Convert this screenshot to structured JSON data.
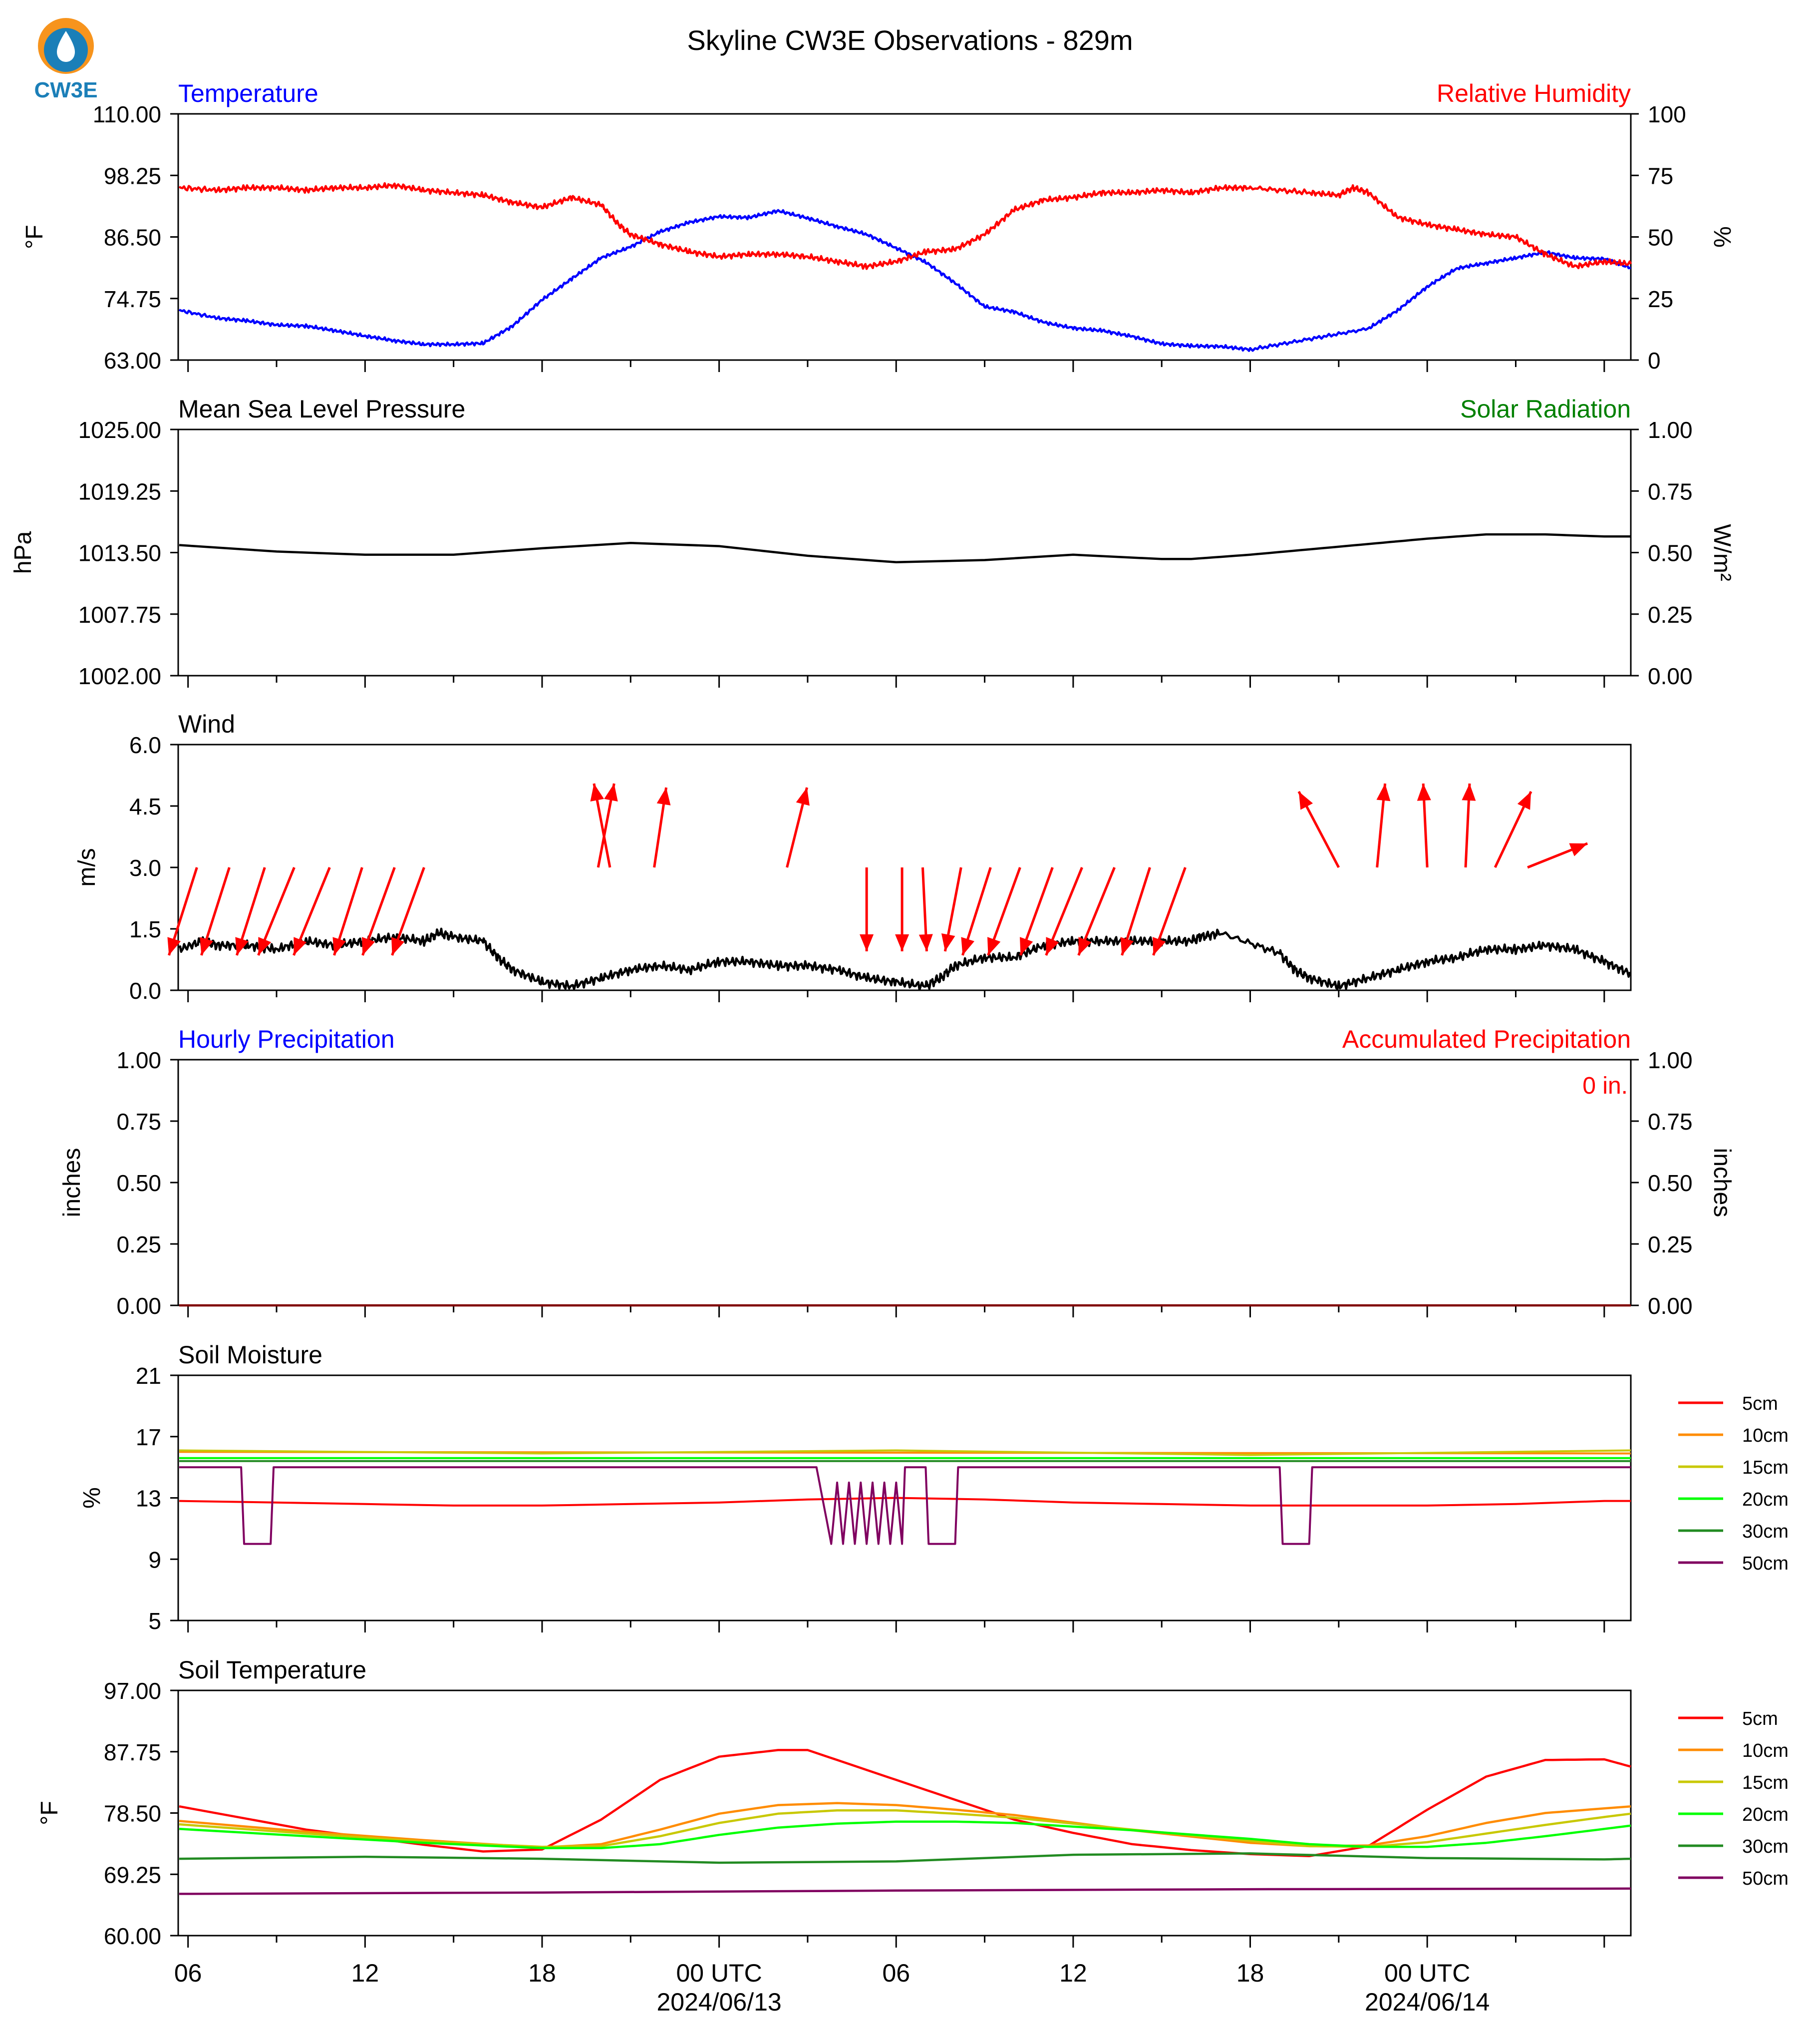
{
  "page": {
    "title": "Skyline CW3E Observations - 829m",
    "logo_text": "CW3E"
  },
  "colors": {
    "temperature": "#0000ff",
    "humidity": "#ff0000",
    "pressure": "#000000",
    "solar": "#008000",
    "wind": "#000000",
    "wind_arrow": "#ff0000",
    "hourly_precip": "#0000ff",
    "accum_precip": "#ff0000",
    "depths": {
      "5cm": "#ff0000",
      "10cm": "#ff8c00",
      "15cm": "#c8c800",
      "20cm": "#00ff00",
      "30cm": "#228b22",
      "50cm": "#800060"
    }
  },
  "time_axis": {
    "start": "2024-06-12T05:40Z",
    "end": "2024-06-14T02:40Z",
    "tick_labels": [
      "06",
      "12",
      "18",
      "00 UTC",
      "06",
      "12",
      "18",
      "00 UTC"
    ],
    "date_labels": [
      "2024/06/13",
      "2024/06/14"
    ]
  },
  "chart_data": [
    {
      "id": "temp_rh",
      "type": "line",
      "title_left": "Temperature",
      "title_right": "Relative Humidity",
      "ylabel_left": "°F",
      "ylabel_right": "%",
      "ylim_left": [
        63.0,
        110.0
      ],
      "ylim_right": [
        0,
        100
      ],
      "yticks_left": [
        "63.00",
        "74.75",
        "86.50",
        "98.25",
        "110.00"
      ],
      "yticks_right": [
        "0",
        "25",
        "50",
        "75",
        "100"
      ],
      "series": [
        {
          "name": "Temperature",
          "axis": "left",
          "x": [
            -0.3,
            1,
            2,
            3,
            4,
            5,
            6,
            7,
            8,
            9,
            10,
            11,
            12,
            13,
            14,
            15,
            16,
            17,
            18,
            19,
            20,
            21,
            22,
            23,
            24,
            25,
            26,
            27,
            28,
            29,
            30,
            31,
            32,
            33,
            34,
            35,
            36,
            38,
            40,
            41,
            42,
            43,
            44,
            45,
            46,
            47,
            48,
            48.9
          ],
          "y": [
            72.5,
            71.0,
            70.5,
            69.7,
            69.5,
            68.6,
            67.6,
            66.7,
            66.0,
            66.0,
            66.2,
            69.5,
            74.5,
            78.5,
            82.5,
            84.6,
            87.5,
            89.3,
            90.4,
            90.2,
            91.5,
            90.1,
            88.5,
            87.0,
            84.4,
            81.7,
            77.7,
            73.2,
            72.2,
            70.2,
            69.1,
            68.6,
            67.5,
            66.1,
            65.7,
            65.6,
            65.0,
            67.0,
            69.0,
            72.5,
            77.0,
            80.5,
            81.5,
            82.5,
            83.6,
            82.5,
            82.3,
            80.6
          ]
        },
        {
          "name": "Relative Humidity",
          "axis": "right",
          "x": [
            -0.3,
            1,
            2,
            3,
            4,
            5,
            6,
            7,
            8,
            9,
            10,
            11,
            12,
            13,
            14,
            14.6,
            15,
            16,
            17,
            18,
            19,
            20,
            21,
            22,
            23,
            24,
            25,
            26,
            27,
            28,
            29,
            30,
            31,
            32,
            33,
            34,
            35,
            36,
            38,
            39,
            39.5,
            40,
            41,
            42,
            43,
            44,
            45,
            46,
            47,
            48,
            48.9
          ],
          "y": [
            70,
            69,
            70,
            70,
            69,
            70,
            70,
            71,
            69,
            68,
            67,
            64,
            62,
            66,
            63,
            55,
            51,
            47,
            44,
            42,
            43,
            43,
            42,
            40,
            38,
            40,
            44,
            45,
            51,
            61,
            65,
            66,
            68,
            68,
            69,
            68,
            70,
            70,
            68,
            67,
            70,
            68,
            58,
            55,
            53,
            51,
            50,
            43,
            38,
            40,
            39
          ]
        }
      ]
    },
    {
      "id": "pressure_solar",
      "type": "line",
      "title_left": "Mean Sea Level Pressure",
      "title_right": "Solar Radiation",
      "ylabel_left": "hPa",
      "ylabel_right": "W/m²",
      "ylim_left": [
        1002.0,
        1025.0
      ],
      "ylim_right": [
        0.0,
        1.0
      ],
      "yticks_left": [
        "1002.00",
        "1007.75",
        "1013.50",
        "1019.25",
        "1025.00"
      ],
      "yticks_right": [
        "0.00",
        "0.25",
        "0.50",
        "0.75",
        "1.00"
      ],
      "series": [
        {
          "name": "Mean Sea Level Pressure",
          "axis": "left",
          "x": [
            -0.3,
            3,
            6,
            9,
            12,
            15,
            18,
            21,
            24,
            27,
            30,
            33,
            34,
            36,
            38,
            40,
            42,
            44,
            46,
            48,
            48.9
          ],
          "y": [
            1014.2,
            1013.6,
            1013.3,
            1013.3,
            1013.9,
            1014.4,
            1014.1,
            1013.2,
            1012.6,
            1012.8,
            1013.3,
            1012.9,
            1012.9,
            1013.3,
            1013.8,
            1014.3,
            1014.8,
            1015.2,
            1015.2,
            1015.0,
            1015.0
          ]
        }
      ]
    },
    {
      "id": "wind",
      "type": "line",
      "title_left": "Wind",
      "ylabel_left": "m/s",
      "ylim_left": [
        0.0,
        6.0
      ],
      "yticks_left": [
        "0.0",
        "1.5",
        "3.0",
        "4.5",
        "6.0"
      ],
      "series": [
        {
          "name": "Wind speed",
          "x": [
            -0.3,
            0.5,
            1,
            2,
            3,
            4,
            5,
            6,
            7,
            8,
            8.5,
            9,
            10,
            10.5,
            11,
            12,
            13,
            14,
            15,
            16,
            17,
            18,
            19,
            20,
            21,
            22,
            23,
            24,
            25,
            25.5,
            26,
            27,
            28,
            29,
            30,
            31,
            32,
            33,
            34,
            34.3,
            35,
            37,
            37.5,
            38,
            39,
            40,
            41,
            42,
            43,
            44,
            45,
            46,
            47,
            48,
            48.9
          ],
          "y": [
            1.0,
            1.2,
            1.1,
            1.1,
            1.0,
            1.2,
            1.1,
            1.2,
            1.3,
            1.2,
            1.4,
            1.3,
            1.2,
            0.8,
            0.5,
            0.2,
            0.1,
            0.3,
            0.5,
            0.6,
            0.5,
            0.7,
            0.7,
            0.6,
            0.6,
            0.5,
            0.3,
            0.2,
            0.1,
            0.3,
            0.6,
            0.8,
            0.8,
            1.1,
            1.2,
            1.2,
            1.2,
            1.2,
            1.2,
            1.3,
            1.4,
            0.9,
            0.5,
            0.3,
            0.1,
            0.3,
            0.5,
            0.7,
            0.8,
            1.0,
            1.0,
            1.1,
            1.0,
            0.7,
            0.4
          ]
        }
      ],
      "barbs_note": "wind direction arrows",
      "arrows": [
        {
          "t": 0.3,
          "u": -0.7,
          "v": -2.2
        },
        {
          "t": 1.4,
          "u": -0.7,
          "v": -2.2
        },
        {
          "t": 2.6,
          "u": -0.7,
          "v": -2.2
        },
        {
          "t": 3.6,
          "u": -0.9,
          "v": -2.2
        },
        {
          "t": 4.8,
          "u": -0.9,
          "v": -2.2
        },
        {
          "t": 5.9,
          "u": -0.7,
          "v": -2.2
        },
        {
          "t": 7.0,
          "u": -0.8,
          "v": -2.2
        },
        {
          "t": 8.0,
          "u": -0.8,
          "v": -2.2
        },
        {
          "t": 13.9,
          "u": 0.4,
          "v": 2.1
        },
        {
          "t": 14.3,
          "u": -0.4,
          "v": 2.1
        },
        {
          "t": 15.8,
          "u": 0.3,
          "v": 2.0
        },
        {
          "t": 20.3,
          "u": 0.5,
          "v": 2.0
        },
        {
          "t": 23.0,
          "u": 0.0,
          "v": -2.1
        },
        {
          "t": 24.2,
          "u": 0.0,
          "v": -2.1
        },
        {
          "t": 24.9,
          "u": 0.1,
          "v": -2.1
        },
        {
          "t": 26.2,
          "u": -0.4,
          "v": -2.1
        },
        {
          "t": 27.2,
          "u": -0.7,
          "v": -2.2
        },
        {
          "t": 28.2,
          "u": -0.8,
          "v": -2.2
        },
        {
          "t": 29.3,
          "u": -0.8,
          "v": -2.2
        },
        {
          "t": 30.3,
          "u": -0.9,
          "v": -2.2
        },
        {
          "t": 31.4,
          "u": -0.9,
          "v": -2.2
        },
        {
          "t": 32.6,
          "u": -0.7,
          "v": -2.2
        },
        {
          "t": 33.8,
          "u": -0.8,
          "v": -2.2
        },
        {
          "t": 39.0,
          "u": -1.0,
          "v": 1.9
        },
        {
          "t": 40.3,
          "u": 0.2,
          "v": 2.1
        },
        {
          "t": 42.0,
          "u": -0.1,
          "v": 2.1
        },
        {
          "t": 43.3,
          "u": 0.1,
          "v": 2.1
        },
        {
          "t": 44.3,
          "u": 0.9,
          "v": 1.9
        },
        {
          "t": 45.4,
          "u": 1.5,
          "v": 0.6
        }
      ]
    },
    {
      "id": "precip",
      "type": "line",
      "title_left": "Hourly Precipitation",
      "title_right": "Accumulated Precipitation",
      "ylabel_left": "inches",
      "ylabel_right": "inches",
      "ylim_left": [
        0.0,
        1.0
      ],
      "ylim_right": [
        0.0,
        1.0
      ],
      "yticks_left": [
        "0.00",
        "0.25",
        "0.50",
        "0.75",
        "1.00"
      ],
      "yticks_right": [
        "0.00",
        "0.25",
        "0.50",
        "0.75",
        "1.00"
      ],
      "annotation": "0 in.",
      "series": [
        {
          "name": "Hourly Precipitation",
          "x": [
            -0.3,
            48.9
          ],
          "y": [
            0,
            0
          ]
        }
      ]
    },
    {
      "id": "soil_moisture",
      "type": "line",
      "title_left": "Soil Moisture",
      "ylabel_left": "%",
      "ylim_left": [
        5,
        21
      ],
      "yticks_left": [
        "5",
        "9",
        "13",
        "17",
        "21"
      ],
      "legend": [
        "5cm",
        "10cm",
        "15cm",
        "20cm",
        "30cm",
        "50cm"
      ],
      "series": [
        {
          "name": "5cm",
          "x": [
            -0.3,
            3,
            6,
            9,
            12,
            15,
            18,
            21,
            24,
            27,
            30,
            33,
            36,
            39,
            42,
            45,
            48,
            48.9
          ],
          "y": [
            12.8,
            12.7,
            12.6,
            12.5,
            12.5,
            12.6,
            12.7,
            12.9,
            13.0,
            12.9,
            12.7,
            12.6,
            12.5,
            12.5,
            12.5,
            12.6,
            12.8,
            12.8
          ]
        },
        {
          "name": "10cm",
          "x": [
            -0.3,
            48.9
          ],
          "y": [
            16.0,
            15.9
          ]
        },
        {
          "name": "15cm",
          "x": [
            -0.3,
            12,
            24,
            36,
            48.9
          ],
          "y": [
            16.1,
            15.9,
            16.1,
            15.8,
            16.1
          ]
        },
        {
          "name": "20cm",
          "x": [
            -0.3,
            48.9
          ],
          "y": [
            15.6,
            15.6
          ]
        },
        {
          "name": "30cm",
          "x": [
            -0.3,
            48.9
          ],
          "y": [
            15.4,
            15.4
          ]
        },
        {
          "name": "50cm",
          "x": [
            -0.3,
            1.8,
            1.9,
            2.8,
            2.9,
            8,
            20,
            21.3,
            21.4,
            21.8,
            22,
            22.2,
            22.4,
            22.6,
            22.8,
            23,
            23.2,
            23.4,
            23.6,
            23.8,
            24,
            24.2,
            24.3,
            24.4,
            25,
            25.1,
            26,
            26.1,
            37,
            37.1,
            38,
            38.1,
            48.9
          ],
          "y": [
            15.0,
            15.0,
            10.0,
            10.0,
            15.0,
            15.0,
            15.0,
            15.0,
            14.0,
            10.0,
            14.0,
            10.0,
            14.0,
            10.0,
            14.0,
            10.0,
            14.0,
            10.0,
            14.0,
            10.0,
            14.0,
            10.0,
            15.0,
            15.0,
            15.0,
            10.0,
            10.0,
            15.0,
            15.0,
            10.0,
            10.0,
            15.0,
            15.0
          ]
        }
      ]
    },
    {
      "id": "soil_temperature",
      "type": "line",
      "title_left": "Soil Temperature",
      "ylabel_left": "°F",
      "ylim_left": [
        60.0,
        97.0
      ],
      "yticks_left": [
        "60.00",
        "69.25",
        "78.50",
        "87.75",
        "97.00"
      ],
      "legend": [
        "5cm",
        "10cm",
        "15cm",
        "20cm",
        "30cm",
        "50cm"
      ],
      "series": [
        {
          "name": "5cm",
          "x": [
            -0.3,
            4,
            8,
            10,
            12,
            14,
            16,
            18,
            20,
            21,
            22,
            24,
            26,
            28,
            30,
            32,
            34,
            36,
            38,
            40,
            42,
            44,
            46,
            48,
            48.9
          ],
          "y": [
            79.5,
            76,
            73.7,
            72.7,
            73.0,
            77.5,
            83.5,
            87.0,
            88.0,
            88.0,
            86.5,
            83.5,
            80.5,
            77.5,
            75.5,
            73.8,
            72.9,
            72.3,
            72.0,
            73.5,
            79.0,
            84.0,
            86.5,
            86.6,
            85.5
          ]
        },
        {
          "name": "10cm",
          "x": [
            -0.3,
            4,
            8,
            12,
            14,
            16,
            18,
            20,
            22,
            24,
            26,
            28,
            32,
            36,
            38,
            40,
            42,
            44,
            46,
            48,
            48.9
          ],
          "y": [
            77.3,
            75.7,
            74.4,
            73.3,
            73.8,
            76.0,
            78.4,
            79.7,
            80.0,
            79.7,
            79.0,
            78.2,
            75.9,
            74.0,
            73.5,
            73.6,
            75.0,
            77.0,
            78.5,
            79.2,
            79.5
          ]
        },
        {
          "name": "15cm",
          "x": [
            -0.3,
            4,
            8,
            12,
            14,
            16,
            18,
            20,
            22,
            24,
            26,
            28,
            32,
            36,
            38,
            40,
            42,
            44,
            46,
            48,
            48.9
          ],
          "y": [
            76.8,
            75.4,
            74.2,
            73.4,
            73.5,
            75.0,
            77.0,
            78.4,
            78.9,
            78.9,
            78.4,
            77.8,
            76.0,
            74.3,
            73.5,
            73.4,
            74.1,
            75.4,
            76.7,
            77.9,
            78.4
          ]
        },
        {
          "name": "20cm",
          "x": [
            -0.3,
            4,
            8,
            12,
            14,
            16,
            18,
            20,
            22,
            24,
            26,
            28,
            32,
            36,
            38,
            40,
            42,
            44,
            46,
            48,
            48.9
          ],
          "y": [
            76.1,
            75.0,
            74.0,
            73.2,
            73.2,
            73.8,
            75.2,
            76.3,
            76.9,
            77.2,
            77.2,
            77.0,
            75.9,
            74.6,
            73.8,
            73.4,
            73.4,
            74.0,
            75.0,
            76.1,
            76.6
          ]
        },
        {
          "name": "30cm",
          "x": [
            -0.3,
            6,
            12,
            18,
            24,
            30,
            36,
            42,
            48,
            48.9
          ],
          "y": [
            71.6,
            71.9,
            71.6,
            71.0,
            71.2,
            72.2,
            72.4,
            71.7,
            71.5,
            71.6
          ]
        },
        {
          "name": "50cm",
          "x": [
            -0.3,
            12,
            24,
            36,
            48.9
          ],
          "y": [
            66.3,
            66.5,
            66.8,
            67.0,
            67.1
          ]
        }
      ]
    }
  ]
}
